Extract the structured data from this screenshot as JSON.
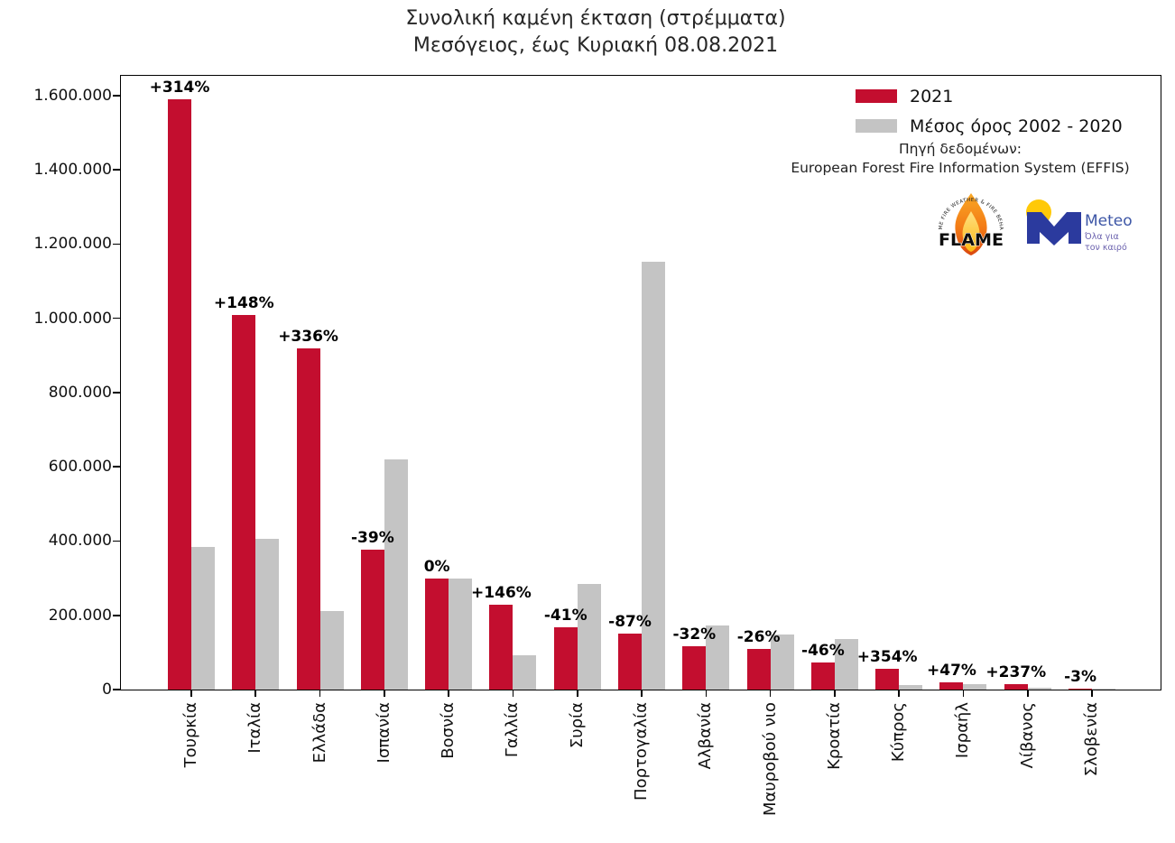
{
  "title": {
    "line1": "Συνολική καμένη έκταση (στρέμματα)",
    "line2": "Μεσόγειος, έως Κυριακή 08.08.2021"
  },
  "legend": {
    "items": [
      {
        "label": "2021",
        "color": "#C30E2F"
      },
      {
        "label": "Μέσος όρος 2002 - 2020",
        "color": "#C4C4C4"
      }
    ]
  },
  "source": {
    "line1": "Πηγή δεδομένων:",
    "line2": "European Forest Fire Information System (EFFIS)"
  },
  "logos": {
    "flame": {
      "arc_text": "EXTREME FIRE WEATHER & FIRE BEHAVIOUR",
      "label": "FLAME"
    },
    "meteo": {
      "label": "Meteo",
      "tagline_line1": "Όλα για",
      "tagline_line2": "τον καιρό"
    }
  },
  "chart_data": {
    "type": "bar",
    "title": "Συνολική καμένη έκταση (στρέμματα)",
    "subtitle": "Μεσόγειος, έως Κυριακή 08.08.2021",
    "xlabel": "",
    "ylabel": "",
    "grid": false,
    "legend_position": "upper right",
    "categories": [
      "Τουρκία",
      "Ιταλία",
      "Ελλάδα",
      "Ισπανία",
      "Βοσνία",
      "Γαλλία",
      "Συρία",
      "Πορτογαλία",
      "Αλβανία",
      "Μαυροβού νιο",
      "Κροατία",
      "Κύπρος",
      "Ισραήλ",
      "Λίβανος",
      "Σλοβενία"
    ],
    "series": [
      {
        "name": "2021",
        "color": "#C30E2F",
        "values": [
          1590000,
          1010000,
          920000,
          378000,
          298000,
          228000,
          168000,
          150000,
          117000,
          110000,
          73000,
          55000,
          20000,
          15000,
          1500
        ]
      },
      {
        "name": "Μέσος όρος 2002 - 2020",
        "color": "#C4C4C4",
        "values": [
          384000,
          407000,
          211000,
          620000,
          300000,
          93000,
          285000,
          1153000,
          172000,
          148000,
          135000,
          12000,
          13500,
          4500,
          1500
        ]
      }
    ],
    "bar_labels": [
      "+314%",
      "+148%",
      "+336%",
      "-39%",
      "0%",
      "+146%",
      "-41%",
      "-87%",
      "-32%",
      "-26%",
      "-46%",
      "+354%",
      "+47%",
      "+237%",
      "-3%"
    ],
    "ylim": [
      0,
      1653000
    ],
    "ytick_values": [
      0,
      200000,
      400000,
      600000,
      800000,
      1000000,
      1200000,
      1400000,
      1600000
    ],
    "ytick_labels": [
      "0",
      "200.000",
      "400.000",
      "600.000",
      "800.000",
      "1.000.000",
      "1.200.000",
      "1.400.000",
      "1.600.000"
    ]
  }
}
